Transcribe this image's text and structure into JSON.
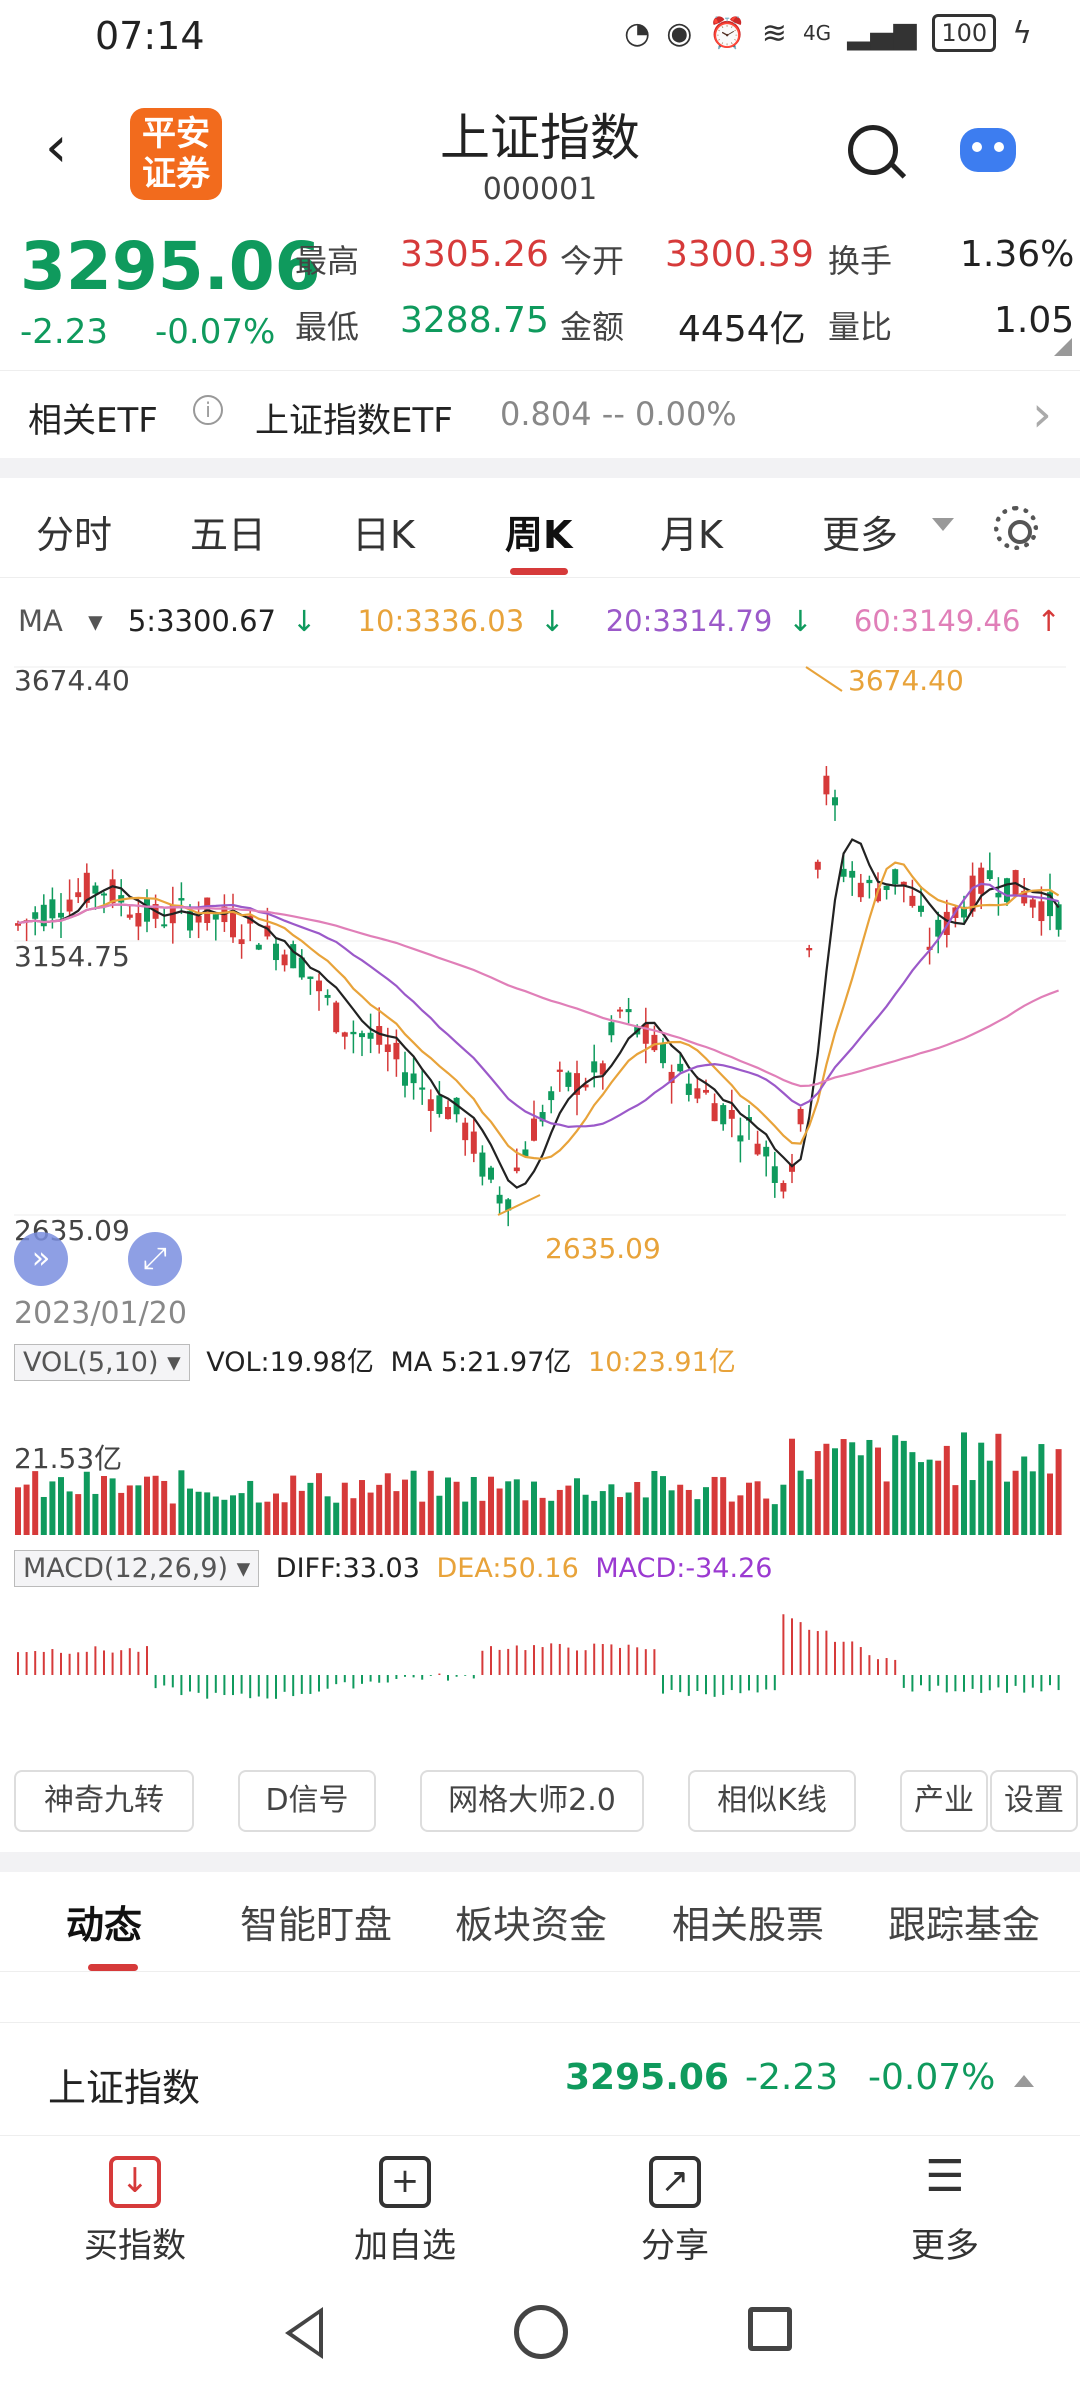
{
  "status_bar": {
    "time": "07:14",
    "network": "4G",
    "battery": "100"
  },
  "header": {
    "logo_text_1": "平安",
    "logo_text_2": "证券",
    "title": "上证指数",
    "code": "000001"
  },
  "quote": {
    "price": "3295.06",
    "change": "-2.23",
    "change_pct": "-0.07%",
    "high_label": "最高",
    "high": "3305.26",
    "open_label": "今开",
    "open": "3300.39",
    "turnover_label": "换手",
    "turnover": "1.36%",
    "low_label": "最低",
    "low": "3288.75",
    "amount_label": "金额",
    "amount": "4454亿",
    "vol_ratio_label": "量比",
    "vol_ratio": "1.05"
  },
  "etf": {
    "label": "相关ETF",
    "name": "上证指数ETF",
    "values": "0.804  --  0.00%"
  },
  "tabs": [
    "分时",
    "五日",
    "日K",
    "周K",
    "月K",
    "更多"
  ],
  "active_tab": "周K",
  "ma": {
    "label": "MA",
    "ma5": "5:3300.67",
    "ma10": "10:3336.03",
    "ma20": "20:3314.79",
    "ma60": "60:3149.46"
  },
  "chart": {
    "y_high": "3674.40",
    "y_mid": "3154.75",
    "y_low": "2635.09",
    "high_annotation": "3674.40",
    "low_annotation": "2635.09",
    "start_date": "2023/01/20"
  },
  "volume": {
    "tag": "VOL(5,10)",
    "vol": "VOL:19.98亿",
    "ma5": "MA 5:21.97亿",
    "ma10": "10:23.91亿",
    "axis": "21.53亿"
  },
  "macd": {
    "tag": "MACD(12,26,9)",
    "diff": "DIFF:33.03",
    "dea": "DEA:50.16",
    "macd": "MACD:-34.26"
  },
  "tools": [
    "神奇九转",
    "D信号",
    "网格大师2.0",
    "相似K线",
    "产业",
    "设置"
  ],
  "news_tabs": [
    "动态",
    "智能盯盘",
    "板块资金",
    "相关股票",
    "跟踪基金"
  ],
  "sticky": {
    "name": "上证指数",
    "price": "3295.06",
    "change": "-2.23",
    "pct": "-0.07%"
  },
  "bottom_nav": [
    {
      "label": "买指数",
      "icon": "download-icon"
    },
    {
      "label": "加自选",
      "icon": "plus-square-icon"
    },
    {
      "label": "分享",
      "icon": "share-icon"
    },
    {
      "label": "更多",
      "icon": "menu-icon"
    }
  ],
  "colors": {
    "up": "#d63a3a",
    "down": "#0f9a5d",
    "ma5": "#222222",
    "ma10": "#e8a33a",
    "ma20": "#9b59c9",
    "ma60": "#e07fb8"
  }
}
